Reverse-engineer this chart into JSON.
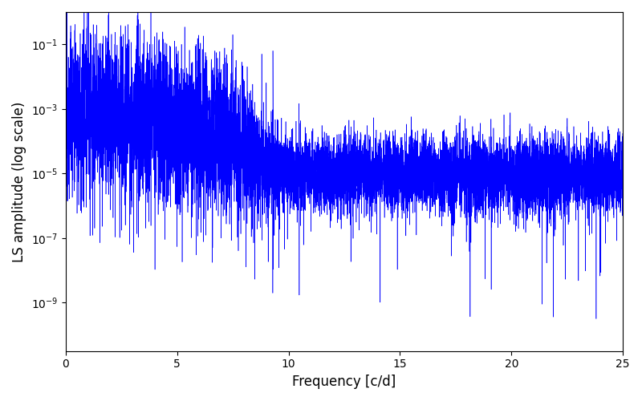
{
  "xlabel": "Frequency [c/d]",
  "ylabel": "LS amplitude (log scale)",
  "title": "",
  "line_color": "#0000ff",
  "xlim": [
    0,
    25
  ],
  "ylim_log": [
    -10.5,
    0
  ],
  "background_color": "#ffffff",
  "figsize": [
    8.0,
    5.0
  ],
  "dpi": 100,
  "seed": 12345,
  "n_points": 10000,
  "freq_max": 25.0
}
